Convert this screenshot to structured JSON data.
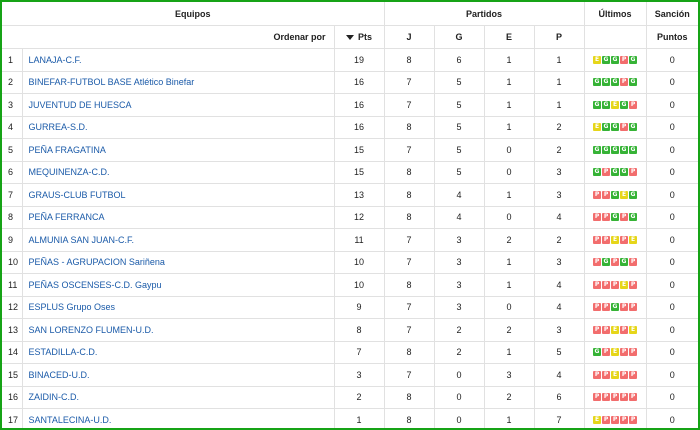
{
  "header": {
    "equipos": "Equipos",
    "partidos": "Partidos",
    "ultimos": "Últimos",
    "sancion": "Sanción",
    "ordenar": "Ordenar por",
    "pts": "Pts",
    "j": "J",
    "g": "G",
    "e": "E",
    "p": "P",
    "puntos": "Puntos"
  },
  "colors": {
    "win": "#36b336",
    "draw": "#e6d61a",
    "loss": "#f26d6d",
    "link": "#1a5aa8",
    "frame": "#16a316"
  },
  "rows": [
    {
      "pos": "1",
      "team": "LANAJA-C.F.",
      "pts": "19",
      "j": "8",
      "g": "6",
      "e": "1",
      "p": "1",
      "form": "EGGPG",
      "san": "0"
    },
    {
      "pos": "2",
      "team": "BINEFAR-FUTBOL BASE Atlético Binefar",
      "pts": "16",
      "j": "7",
      "g": "5",
      "e": "1",
      "p": "1",
      "form": "GGGPG",
      "san": "0"
    },
    {
      "pos": "3",
      "team": "JUVENTUD DE HUESCA",
      "pts": "16",
      "j": "7",
      "g": "5",
      "e": "1",
      "p": "1",
      "form": "GGEGP",
      "san": "0"
    },
    {
      "pos": "4",
      "team": "GURREA-S.D.",
      "pts": "16",
      "j": "8",
      "g": "5",
      "e": "1",
      "p": "2",
      "form": "EGGPG",
      "san": "0"
    },
    {
      "pos": "5",
      "team": "PEÑA FRAGATINA",
      "pts": "15",
      "j": "7",
      "g": "5",
      "e": "0",
      "p": "2",
      "form": "GGGGG",
      "san": "0"
    },
    {
      "pos": "6",
      "team": "MEQUINENZA-C.D.",
      "pts": "15",
      "j": "8",
      "g": "5",
      "e": "0",
      "p": "3",
      "form": "GPGGP",
      "san": "0"
    },
    {
      "pos": "7",
      "team": "GRAUS-CLUB FUTBOL",
      "pts": "13",
      "j": "8",
      "g": "4",
      "e": "1",
      "p": "3",
      "form": "PPGEG",
      "san": "0"
    },
    {
      "pos": "8",
      "team": "PEÑA FERRANCA",
      "pts": "12",
      "j": "8",
      "g": "4",
      "e": "0",
      "p": "4",
      "form": "PPGPG",
      "san": "0"
    },
    {
      "pos": "9",
      "team": "ALMUNIA SAN JUAN-C.F.",
      "pts": "11",
      "j": "7",
      "g": "3",
      "e": "2",
      "p": "2",
      "form": "PPEPE",
      "san": "0"
    },
    {
      "pos": "10",
      "team": "PEÑAS - AGRUPACION Sariñena",
      "pts": "10",
      "j": "7",
      "g": "3",
      "e": "1",
      "p": "3",
      "form": "PGPGP",
      "san": "0"
    },
    {
      "pos": "11",
      "team": "PEÑAS OSCENSES-C.D. Gaypu",
      "pts": "10",
      "j": "8",
      "g": "3",
      "e": "1",
      "p": "4",
      "form": "PPPEP",
      "san": "0"
    },
    {
      "pos": "12",
      "team": "ESPLUS Grupo Oses",
      "pts": "9",
      "j": "7",
      "g": "3",
      "e": "0",
      "p": "4",
      "form": "PPGPP",
      "san": "0"
    },
    {
      "pos": "13",
      "team": "SAN LORENZO FLUMEN-U.D.",
      "pts": "8",
      "j": "7",
      "g": "2",
      "e": "2",
      "p": "3",
      "form": "PPEPE",
      "san": "0"
    },
    {
      "pos": "14",
      "team": "ESTADILLA-C.D.",
      "pts": "7",
      "j": "8",
      "g": "2",
      "e": "1",
      "p": "5",
      "form": "GPEPP",
      "san": "0"
    },
    {
      "pos": "15",
      "team": "BINACED-U.D.",
      "pts": "3",
      "j": "7",
      "g": "0",
      "e": "3",
      "p": "4",
      "form": "PPEPP",
      "san": "0"
    },
    {
      "pos": "16",
      "team": "ZAIDIN-C.D.",
      "pts": "2",
      "j": "8",
      "g": "0",
      "e": "2",
      "p": "6",
      "form": "PPPPP",
      "san": "0"
    },
    {
      "pos": "17",
      "team": "SANTALECINA-U.D.",
      "pts": "1",
      "j": "8",
      "g": "0",
      "e": "1",
      "p": "7",
      "form": "EPPPP",
      "san": "0"
    }
  ]
}
